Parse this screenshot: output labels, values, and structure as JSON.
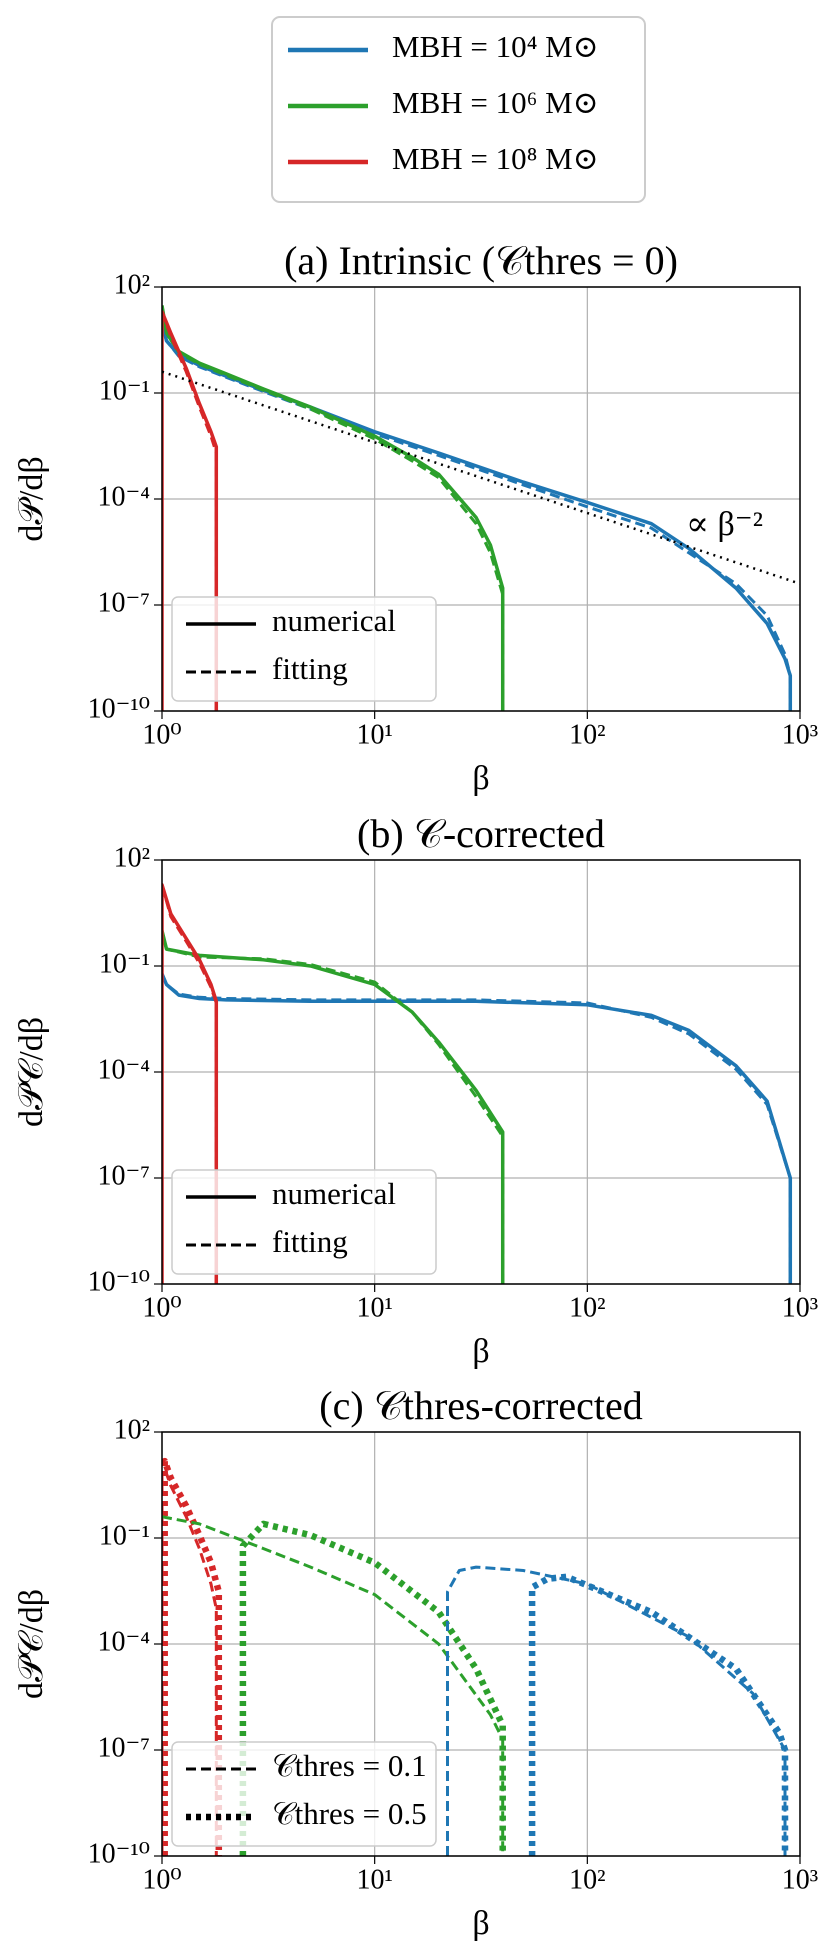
{
  "legend": [
    {
      "label": "MBH = 10⁴ M⊙",
      "color": "#1f77b4"
    },
    {
      "label": "MBH = 10⁶ M⊙",
      "color": "#2ca02c"
    },
    {
      "label": "MBH = 10⁸ M⊙",
      "color": "#d62728"
    }
  ],
  "chart_data": [
    {
      "type": "line",
      "title": "(a) Intrinsic (𝒞thres = 0)",
      "x_label": "β",
      "y_label": "d𝒫/dβ",
      "log_x": true,
      "log_y": true,
      "grid": true,
      "legend_corner": "lower left",
      "xlim": [
        1,
        1000
      ],
      "ylim": [
        1e-10,
        100
      ],
      "xticks": [
        {
          "value": 1,
          "label": "10⁰"
        },
        {
          "value": 10,
          "label": "10¹"
        },
        {
          "value": 100,
          "label": "10²"
        },
        {
          "value": 1000,
          "label": "10³"
        }
      ],
      "yticks": [
        {
          "value": 1e-10,
          "label": "10⁻¹⁰"
        },
        {
          "value": 1e-07,
          "label": "10⁻⁷"
        },
        {
          "value": 0.0001,
          "label": "10⁻⁴"
        },
        {
          "value": 0.1,
          "label": "10⁻¹"
        },
        {
          "value": 100,
          "label": "10²"
        }
      ],
      "line_styles": [
        {
          "label": "numerical",
          "dash": "solid"
        },
        {
          "label": "fitting",
          "dash": "dashed"
        }
      ],
      "annotation": "∝ β⁻²",
      "series": [
        {
          "color": "#1f77b4",
          "dash": "solid",
          "x": [
            1,
            1.05,
            1.2,
            1.5,
            2,
            3,
            5,
            10,
            20,
            50,
            100,
            200,
            300,
            500,
            700,
            850,
            900,
            900
          ],
          "values": [
            10,
            3,
            1.2,
            0.6,
            0.3,
            0.12,
            0.04,
            0.008,
            0.002,
            0.0003,
            8e-05,
            2e-05,
            4e-06,
            3e-07,
            3e-08,
            3e-09,
            1e-09,
            1e-10
          ]
        },
        {
          "color": "#1f77b4",
          "dash": "dashed",
          "x": [
            1,
            1.05,
            1.2,
            1.5,
            2,
            3,
            5,
            10,
            20,
            50,
            100,
            200,
            300,
            500,
            700,
            850,
            900,
            900
          ],
          "values": [
            10,
            3,
            1.1,
            0.55,
            0.28,
            0.11,
            0.035,
            0.007,
            0.0017,
            0.00025,
            6e-05,
            1.5e-05,
            3e-06,
            4e-07,
            5e-08,
            4e-09,
            1e-09,
            1e-10
          ]
        },
        {
          "color": "#2ca02c",
          "dash": "solid",
          "x": [
            1,
            1.05,
            1.2,
            1.5,
            2,
            3,
            5,
            10,
            15,
            20,
            30,
            35,
            40,
            40
          ],
          "values": [
            30,
            5,
            1.5,
            0.7,
            0.35,
            0.13,
            0.04,
            0.006,
            0.0015,
            0.0005,
            3e-05,
            5e-06,
            3e-07,
            1e-10
          ]
        },
        {
          "color": "#2ca02c",
          "dash": "dashed",
          "x": [
            1,
            1.05,
            1.2,
            1.5,
            2,
            3,
            5,
            10,
            15,
            20,
            30,
            35,
            40,
            40
          ],
          "values": [
            30,
            5,
            1.4,
            0.65,
            0.32,
            0.12,
            0.035,
            0.005,
            0.0012,
            0.0004,
            2e-05,
            3e-06,
            2e-07,
            1e-10
          ]
        },
        {
          "color": "#d62728",
          "dash": "solid",
          "x": [
            1,
            1,
            1.1,
            1.3,
            1.5,
            1.7,
            1.8,
            1.8
          ],
          "values": [
            1e-10,
            20,
            5,
            0.5,
            0.05,
            0.008,
            0.003,
            1e-10
          ]
        },
        {
          "color": "#d62728",
          "dash": "dashed",
          "x": [
            1,
            1.1,
            1.3,
            1.5,
            1.7,
            1.8,
            1.8
          ],
          "values": [
            20,
            4,
            0.4,
            0.04,
            0.006,
            0.002,
            1e-10
          ]
        },
        {
          "color": "#000000",
          "dash": "dotted",
          "x": [
            1,
            1000
          ],
          "values": [
            0.4,
            4e-07
          ]
        }
      ]
    },
    {
      "type": "line",
      "title": "(b) 𝒞-corrected",
      "x_label": "β",
      "y_label": "d𝒫𝒞/dβ",
      "log_x": true,
      "log_y": true,
      "grid": true,
      "legend_corner": "lower left",
      "xlim": [
        1,
        1000
      ],
      "ylim": [
        1e-10,
        100
      ],
      "xticks": [
        {
          "value": 1,
          "label": "10⁰"
        },
        {
          "value": 10,
          "label": "10¹"
        },
        {
          "value": 100,
          "label": "10²"
        },
        {
          "value": 1000,
          "label": "10³"
        }
      ],
      "yticks": [
        {
          "value": 1e-10,
          "label": "10⁻¹⁰"
        },
        {
          "value": 1e-07,
          "label": "10⁻⁷"
        },
        {
          "value": 0.0001,
          "label": "10⁻⁴"
        },
        {
          "value": 0.1,
          "label": "10⁻¹"
        },
        {
          "value": 100,
          "label": "10²"
        }
      ],
      "line_styles": [
        {
          "label": "numerical",
          "dash": "solid"
        },
        {
          "label": "fitting",
          "dash": "dashed"
        }
      ],
      "series": [
        {
          "color": "#1f77b4",
          "dash": "solid",
          "x": [
            1,
            1.05,
            1.2,
            1.5,
            2,
            5,
            10,
            30,
            100,
            200,
            300,
            500,
            700,
            900,
            900
          ],
          "values": [
            0.06,
            0.03,
            0.015,
            0.012,
            0.011,
            0.01,
            0.01,
            0.01,
            0.008,
            0.004,
            0.0015,
            0.00015,
            1.5e-05,
            1e-07,
            1e-10
          ]
        },
        {
          "color": "#1f77b4",
          "dash": "dashed",
          "x": [
            1,
            1.05,
            1.2,
            1.5,
            2,
            5,
            10,
            30,
            100,
            200,
            300,
            500,
            700,
            900,
            900
          ],
          "values": [
            0.06,
            0.03,
            0.016,
            0.013,
            0.012,
            0.011,
            0.011,
            0.011,
            0.009,
            0.0035,
            0.0012,
            0.00012,
            1.2e-05,
            1e-07,
            1e-10
          ]
        },
        {
          "color": "#2ca02c",
          "dash": "solid",
          "x": [
            1,
            1.05,
            1.5,
            3,
            5,
            10,
            15,
            20,
            30,
            40,
            40
          ],
          "values": [
            1,
            0.3,
            0.2,
            0.15,
            0.1,
            0.03,
            0.005,
            0.0007,
            3e-05,
            2e-06,
            1e-10
          ]
        },
        {
          "color": "#2ca02c",
          "dash": "dashed",
          "x": [
            1,
            1.05,
            1.5,
            3,
            5,
            10,
            15,
            20,
            30,
            40,
            40
          ],
          "values": [
            1,
            0.3,
            0.18,
            0.16,
            0.11,
            0.035,
            0.005,
            0.0006,
            2e-05,
            1.5e-06,
            1e-10
          ]
        },
        {
          "color": "#d62728",
          "dash": "solid",
          "x": [
            1,
            1,
            1.1,
            1.3,
            1.5,
            1.7,
            1.8,
            1.8
          ],
          "values": [
            1e-10,
            20,
            3,
            0.6,
            0.15,
            0.03,
            0.01,
            1e-10
          ]
        },
        {
          "color": "#d62728",
          "dash": "dashed",
          "x": [
            1,
            1.1,
            1.3,
            1.5,
            1.7,
            1.8,
            1.8
          ],
          "values": [
            20,
            2.5,
            0.5,
            0.12,
            0.025,
            0.009,
            1e-10
          ]
        }
      ]
    },
    {
      "type": "line",
      "title": "(c) 𝒞thres-corrected",
      "x_label": "β",
      "y_label": "d𝒫𝒞/dβ",
      "log_x": true,
      "log_y": true,
      "grid": true,
      "legend_corner": "lower left",
      "xlim": [
        1,
        1000
      ],
      "ylim": [
        1e-10,
        100
      ],
      "xticks": [
        {
          "value": 1,
          "label": "10⁰"
        },
        {
          "value": 10,
          "label": "10¹"
        },
        {
          "value": 100,
          "label": "10²"
        },
        {
          "value": 1000,
          "label": "10³"
        }
      ],
      "yticks": [
        {
          "value": 1e-10,
          "label": "10⁻¹⁰"
        },
        {
          "value": 1e-07,
          "label": "10⁻⁷"
        },
        {
          "value": 0.0001,
          "label": "10⁻⁴"
        },
        {
          "value": 0.1,
          "label": "10⁻¹"
        },
        {
          "value": 100,
          "label": "10²"
        }
      ],
      "line_styles": [
        {
          "label": "𝒞thres = 0.1",
          "dash": "dashed"
        },
        {
          "label": "𝒞thres = 0.5",
          "dash": "dotted"
        }
      ],
      "series": [
        {
          "color": "#d62728",
          "dash": "dashed",
          "x": [
            1,
            1,
            1.1,
            1.3,
            1.5,
            1.7,
            1.8,
            1.8
          ],
          "values": [
            1e-10,
            15,
            3,
            0.4,
            0.05,
            0.005,
            0.001,
            1e-10
          ]
        },
        {
          "color": "#d62728",
          "dash": "dotted",
          "x": [
            1.03,
            1.03,
            1.1,
            1.3,
            1.5,
            1.7,
            1.85,
            1.85
          ],
          "values": [
            1e-10,
            15,
            5,
            0.8,
            0.12,
            0.02,
            0.003,
            1e-10
          ]
        },
        {
          "color": "#2ca02c",
          "dash": "dashed",
          "x": [
            1,
            1.5,
            3,
            5,
            10,
            20,
            35,
            40,
            40
          ],
          "values": [
            0.4,
            0.25,
            0.05,
            0.015,
            0.0025,
            0.0001,
            1e-06,
            2e-07,
            1e-10
          ]
        },
        {
          "color": "#2ca02c",
          "dash": "dotted",
          "x": [
            2.4,
            2.4,
            3,
            5,
            10,
            20,
            30,
            40,
            40
          ],
          "values": [
            1e-10,
            0.06,
            0.25,
            0.12,
            0.02,
            0.0008,
            2e-05,
            5e-07,
            1e-10
          ]
        },
        {
          "color": "#1f77b4",
          "dash": "dashed",
          "x": [
            22,
            22,
            25,
            30,
            50,
            100,
            300,
            600,
            850,
            850
          ],
          "values": [
            1e-10,
            0.003,
            0.012,
            0.015,
            0.012,
            0.005,
            0.00016,
            4e-06,
            1e-07,
            1e-10
          ]
        },
        {
          "color": "#1f77b4",
          "dash": "dotted",
          "x": [
            55,
            55,
            65,
            80,
            200,
            500,
            800,
            850,
            850
          ],
          "values": [
            1e-10,
            0.004,
            0.007,
            0.008,
            0.0008,
            2e-05,
            3e-07,
            1e-07,
            1e-10
          ]
        }
      ]
    }
  ]
}
